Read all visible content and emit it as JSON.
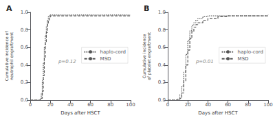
{
  "chart_data": [
    {
      "type": "step",
      "title": "A",
      "xlabel": "Days after HSCT",
      "ylabel": "Cumulative incidence of neutrophil engraftment",
      "annotation": "p=0.12",
      "xlim": [
        0,
        100
      ],
      "xticks": [
        0,
        20,
        40,
        60,
        80,
        100
      ],
      "ylim": [
        0,
        1.0
      ],
      "yticks": [
        {
          "value": 0.0,
          "label": "0.0"
        },
        0.2,
        0.4,
        0.6,
        0.8,
        {
          "value": 1.0,
          "label": "1.0"
        }
      ],
      "grid": false,
      "legend": "right",
      "series": [
        {
          "name": "haplo-cord",
          "color": "#555555",
          "line_style": "dotted",
          "x": [
            0,
            0,
            10,
            11,
            12,
            13,
            14,
            15,
            16,
            17,
            18,
            19,
            20,
            21,
            100
          ],
          "values": [
            0,
            0.0,
            0.01,
            0.08,
            0.22,
            0.42,
            0.6,
            0.74,
            0.84,
            0.91,
            0.95,
            0.96,
            0.97,
            0.97,
            0.97
          ]
        },
        {
          "name": "MSD",
          "color": "#555555",
          "line_style": "dashed",
          "x": [
            0,
            0,
            11,
            12,
            13,
            14,
            15,
            16,
            17,
            18,
            19,
            20,
            21,
            22,
            100
          ],
          "values": [
            0,
            0.0,
            0.02,
            0.1,
            0.28,
            0.48,
            0.65,
            0.77,
            0.86,
            0.91,
            0.94,
            0.96,
            0.96,
            0.96,
            0.96
          ]
        }
      ]
    },
    {
      "type": "step",
      "title": "B",
      "xlabel": "Days after HSCT",
      "ylabel": "Cumulative incidence of platelet engraftment",
      "annotation": "p=0.01",
      "xlim": [
        0,
        100
      ],
      "xticks": [
        0,
        20,
        40,
        60,
        80,
        100
      ],
      "ylim": [
        0,
        1.0
      ],
      "yticks": [
        {
          "value": 0.0,
          "label": "0.0"
        },
        0.2,
        0.4,
        0.6,
        0.8,
        {
          "value": 1.0,
          "label": "1.0"
        }
      ],
      "grid": false,
      "legend": "right",
      "series": [
        {
          "name": "haplo-cord",
          "color": "#555555",
          "line_style": "dotted",
          "x": [
            0,
            0,
            10,
            12,
            14,
            16,
            18,
            20,
            22,
            24,
            26,
            28,
            30,
            35,
            40,
            100
          ],
          "values": [
            0,
            0.0,
            0.01,
            0.06,
            0.16,
            0.32,
            0.52,
            0.68,
            0.79,
            0.85,
            0.88,
            0.91,
            0.93,
            0.95,
            0.96,
            0.96
          ]
        },
        {
          "name": "MSD",
          "color": "#555555",
          "line_style": "dashed",
          "x": [
            0,
            0,
            12,
            14,
            16,
            18,
            20,
            22,
            24,
            26,
            28,
            30,
            35,
            40,
            50,
            60,
            100
          ],
          "values": [
            0,
            0.0,
            0.02,
            0.08,
            0.22,
            0.4,
            0.57,
            0.7,
            0.78,
            0.83,
            0.86,
            0.88,
            0.91,
            0.93,
            0.95,
            0.96,
            0.97
          ]
        }
      ]
    }
  ]
}
